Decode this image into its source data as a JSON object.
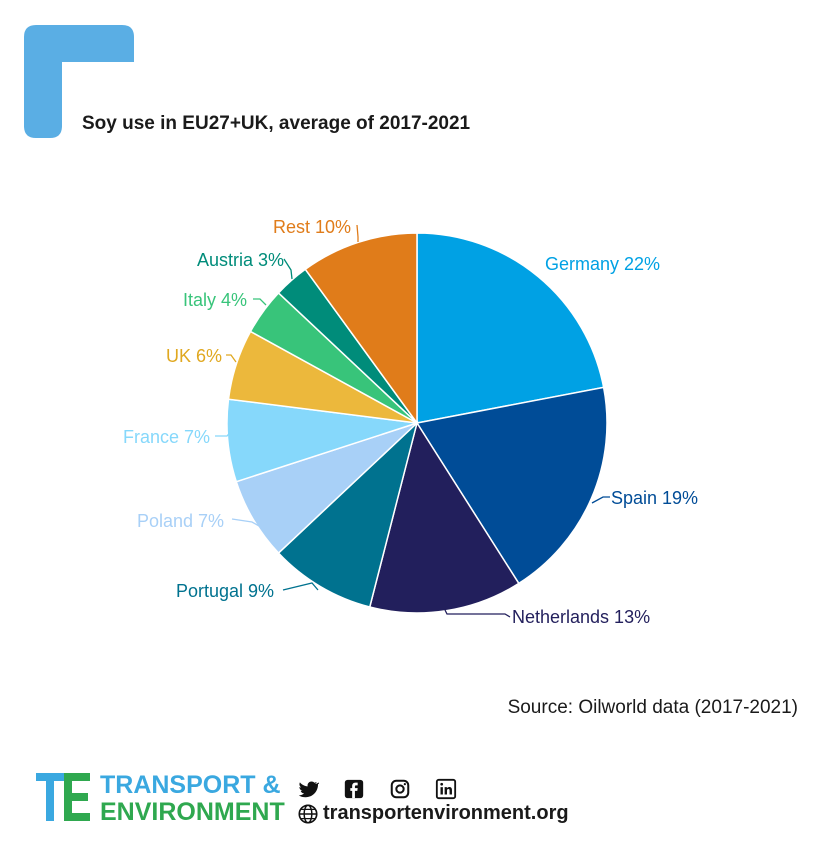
{
  "header": {
    "title": "Soy use in EU27+UK, average of 2017-2021"
  },
  "chart_data": {
    "type": "pie",
    "title": "Soy use in EU27+UK, average of 2017-2021",
    "slices": [
      {
        "label": "Germany 22%",
        "name": "Germany",
        "value": 22,
        "color": "#00a1e4",
        "label_color": "#00a1e4"
      },
      {
        "label": "Spain 19%",
        "name": "Spain",
        "value": 19,
        "color": "#004c97",
        "label_color": "#004c97"
      },
      {
        "label": "Netherlands 13%",
        "name": "Netherlands",
        "value": 13,
        "color": "#221f5c",
        "label_color": "#221f5c"
      },
      {
        "label": "Portugal 9%",
        "name": "Portugal",
        "value": 9,
        "color": "#00728f",
        "label_color": "#00728f"
      },
      {
        "label": "Poland 7%",
        "name": "Poland",
        "value": 7,
        "color": "#a8d0f7",
        "label_color": "#a8d0f7"
      },
      {
        "label": "France 7%",
        "name": "France",
        "value": 7,
        "color": "#86d8fb",
        "label_color": "#86d8fb"
      },
      {
        "label": "UK 6%",
        "name": "UK",
        "value": 6,
        "color": "#ecb83c",
        "label_color": "#e0a820"
      },
      {
        "label": "Italy 4%",
        "name": "Italy",
        "value": 4,
        "color": "#38c47a",
        "label_color": "#38c47a"
      },
      {
        "label": "Austria 3%",
        "name": "Austria",
        "value": 3,
        "color": "#008c7a",
        "label_color": "#008c7a"
      },
      {
        "label": "Rest 10%",
        "name": "Rest",
        "value": 10,
        "color": "#e07c1a",
        "label_color": "#e07c1a"
      }
    ]
  },
  "source": "Source: Oilworld data (2017-2021)",
  "footer": {
    "brand_line1": "TRANSPORT &",
    "brand_line2": "ENVIRONMENT",
    "website": "transportenvironment.org",
    "social_icons": [
      "twitter-icon",
      "facebook-icon",
      "instagram-icon",
      "linkedin-icon",
      "globe-icon"
    ],
    "brand_color": "#2fa84f",
    "accent_color": "#3aa8e0"
  }
}
